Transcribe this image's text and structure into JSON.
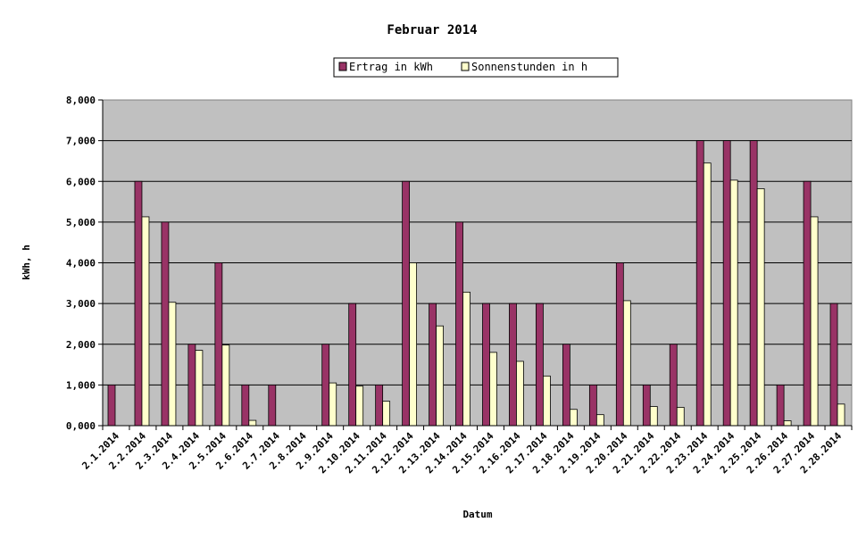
{
  "chart_data": {
    "type": "bar",
    "title": "Februar 2014",
    "xlabel": "Datum",
    "ylabel": "kWh, h",
    "ylim": [
      0,
      8
    ],
    "y_ticks": [
      "0,000",
      "1,000",
      "2,000",
      "3,000",
      "4,000",
      "5,000",
      "6,000",
      "7,000",
      "8,000"
    ],
    "grid": true,
    "legend_position": "top",
    "plot_background": "#c0c0c0",
    "categories": [
      "2.1.2014",
      "2.2.2014",
      "2.3.2014",
      "2.4.2014",
      "2.5.2014",
      "2.6.2014",
      "2.7.2014",
      "2.8.2014",
      "2.9.2014",
      "2.10.2014",
      "2.11.2014",
      "2.12.2014",
      "2.13.2014",
      "2.14.2014",
      "2.15.2014",
      "2.16.2014",
      "2.17.2014",
      "2.18.2014",
      "2.19.2014",
      "2.20.2014",
      "2.21.2014",
      "2.22.2014",
      "2.23.2014",
      "2.24.2014",
      "2.25.2014",
      "2.26.2014",
      "2.27.2014",
      "2.28.2014"
    ],
    "series": [
      {
        "name": "Ertrag in kWh",
        "color": "#993366",
        "values": [
          1,
          6,
          5,
          2,
          4,
          1,
          1,
          0,
          2,
          3,
          1,
          6,
          3,
          5,
          3,
          3,
          3,
          2,
          1,
          4,
          1,
          2,
          7,
          7,
          7,
          1,
          6,
          3
        ]
      },
      {
        "name": "Sonnenstunden in h",
        "color": "#ffffcc",
        "values": [
          0,
          5.13,
          3.03,
          1.85,
          1.98,
          0.13,
          0,
          0,
          1.05,
          0.97,
          0.6,
          4.0,
          2.45,
          3.28,
          1.8,
          1.58,
          1.22,
          0.4,
          0.27,
          3.07,
          0.47,
          0.45,
          6.45,
          6.03,
          5.82,
          0.12,
          5.13,
          0.53
        ]
      }
    ]
  }
}
